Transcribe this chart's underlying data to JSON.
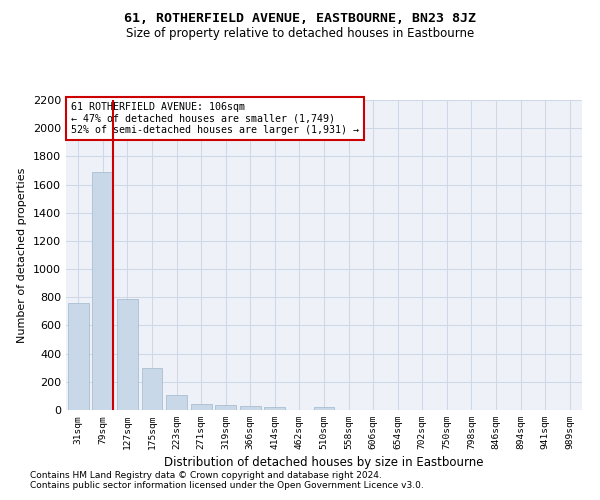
{
  "title": "61, ROTHERFIELD AVENUE, EASTBOURNE, BN23 8JZ",
  "subtitle": "Size of property relative to detached houses in Eastbourne",
  "xlabel": "Distribution of detached houses by size in Eastbourne",
  "ylabel": "Number of detached properties",
  "categories": [
    "31sqm",
    "79sqm",
    "127sqm",
    "175sqm",
    "223sqm",
    "271sqm",
    "319sqm",
    "366sqm",
    "414sqm",
    "462sqm",
    "510sqm",
    "558sqm",
    "606sqm",
    "654sqm",
    "702sqm",
    "750sqm",
    "798sqm",
    "846sqm",
    "894sqm",
    "941sqm",
    "989sqm"
  ],
  "values": [
    760,
    1690,
    790,
    300,
    110,
    45,
    32,
    28,
    18,
    0,
    22,
    0,
    0,
    0,
    0,
    0,
    0,
    0,
    0,
    0,
    0
  ],
  "bar_color": "#c8d8e8",
  "bar_edge_color": "#a0b8cc",
  "grid_color": "#d0d8e8",
  "background_color": "#eef2f8",
  "annotation_text_line1": "61 ROTHERFIELD AVENUE: 106sqm",
  "annotation_text_line2": "← 47% of detached houses are smaller (1,749)",
  "annotation_text_line3": "52% of semi-detached houses are larger (1,931) →",
  "red_line_color": "#cc0000",
  "annotation_box_edge": "#cc0000",
  "ylim": [
    0,
    2200
  ],
  "footnote1": "Contains HM Land Registry data © Crown copyright and database right 2024.",
  "footnote2": "Contains public sector information licensed under the Open Government Licence v3.0."
}
